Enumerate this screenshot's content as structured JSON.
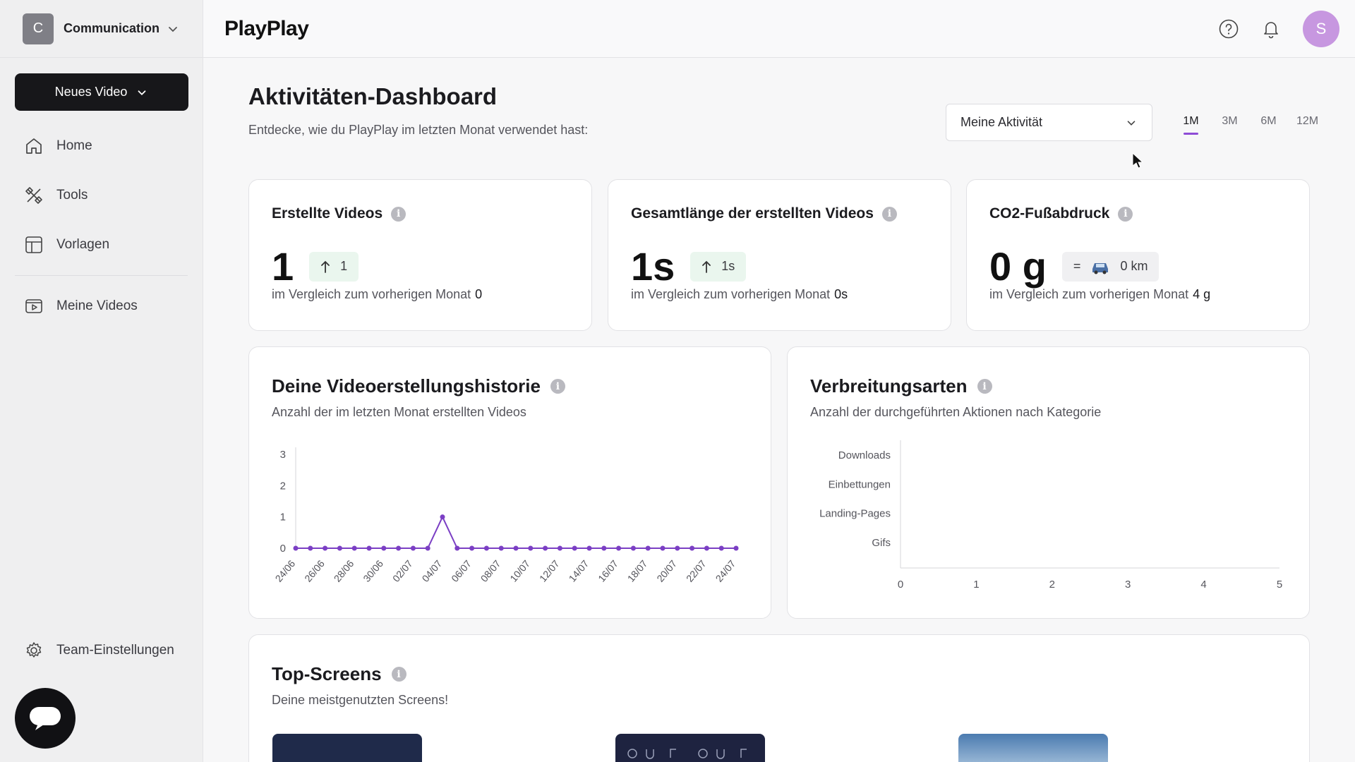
{
  "sidebar": {
    "workspace_initial": "C",
    "workspace_name": "Communication",
    "new_video_label": "Neues Video",
    "items": [
      {
        "label": "Home",
        "icon": "home-icon"
      },
      {
        "label": "Tools",
        "icon": "tools-icon"
      },
      {
        "label": "Vorlagen",
        "icon": "templates-icon"
      },
      {
        "label": "Meine Videos",
        "icon": "video-icon"
      }
    ],
    "team_settings": "Team-Einstellungen"
  },
  "header": {
    "logo": "PlayPlay",
    "user_initial": "S"
  },
  "main": {
    "title": "Aktivitäten-Dashboard",
    "subtitle": "Entdecke, wie du PlayPlay im letzten Monat verwendet hast:",
    "activity_select": "Meine Aktivität",
    "periods": [
      "1M",
      "3M",
      "6M",
      "12M"
    ],
    "active_period": "1M"
  },
  "stats": [
    {
      "title": "Erstellte Videos",
      "value": "1",
      "badge": "1",
      "compare_label": "im Vergleich zum vorherigen Monat",
      "compare_value": "0"
    },
    {
      "title": "Gesamtlänge der erstellten Videos",
      "value": "1s",
      "badge": "1s",
      "compare_label": "im Vergleich zum vorherigen Monat",
      "compare_value": "0s"
    },
    {
      "title": "CO2-Fußabdruck",
      "value": "0 g",
      "badge_eq": "=",
      "badge": "0 km",
      "compare_label": "im Vergleich zum vorherigen Monat",
      "compare_value": "4 g"
    }
  ],
  "history": {
    "title": "Deine Videoerstellungshistorie",
    "subtitle": "Anzahl der im letzten Monat erstellten Videos"
  },
  "distribution": {
    "title": "Verbreitungsarten",
    "subtitle": "Anzahl der durchgeführten Aktionen nach Kategorie"
  },
  "top_screens": {
    "title": "Top-Screens",
    "subtitle": "Deine meistgenutzten Screens!"
  },
  "colors": {
    "accent": "#8e4cd6",
    "line": "#7b3fc4"
  },
  "chart_data": [
    {
      "type": "line",
      "x": [
        "24/06",
        "25/06",
        "26/06",
        "27/06",
        "28/06",
        "29/06",
        "30/06",
        "01/07",
        "02/07",
        "03/07",
        "04/07",
        "05/07",
        "06/07",
        "07/07",
        "08/07",
        "09/07",
        "10/07",
        "11/07",
        "12/07",
        "13/07",
        "14/07",
        "15/07",
        "16/07",
        "17/07",
        "18/07",
        "19/07",
        "20/07",
        "21/07",
        "22/07",
        "23/07",
        "24/07"
      ],
      "tick_labels": [
        "24/06",
        "26/06",
        "28/06",
        "30/06",
        "02/07",
        "04/07",
        "06/07",
        "08/07",
        "10/07",
        "12/07",
        "14/07",
        "16/07",
        "18/07",
        "20/07",
        "22/07",
        "24/07"
      ],
      "values": [
        0,
        0,
        0,
        0,
        0,
        0,
        0,
        0,
        0,
        0,
        1,
        0,
        0,
        0,
        0,
        0,
        0,
        0,
        0,
        0,
        0,
        0,
        0,
        0,
        0,
        0,
        0,
        0,
        0,
        0,
        0
      ],
      "ylim": [
        0,
        3
      ],
      "yticks": [
        "0",
        "1",
        "2",
        "3"
      ]
    },
    {
      "type": "bar",
      "orientation": "horizontal",
      "categories": [
        "Downloads",
        "Einbettungen",
        "Landing-Pages",
        "Gifs"
      ],
      "values": [
        0,
        0,
        0,
        0
      ],
      "xlim": [
        0,
        5
      ],
      "xticks": [
        "0",
        "1",
        "2",
        "3",
        "4",
        "5"
      ]
    }
  ]
}
